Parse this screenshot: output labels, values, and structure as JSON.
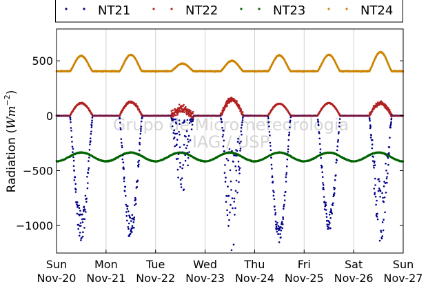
{
  "chart_data": {
    "type": "scatter",
    "ylabel": "Radiation (",
    "ylabel_unit": "Wm",
    "ylabel_exp": "−2",
    "ylabel_close": ")",
    "ylim": [
      -1250,
      790
    ],
    "xlim": [
      0,
      7
    ],
    "yticks": [
      500,
      0,
      -500,
      -1000
    ],
    "ytick_labels": [
      "500",
      "0",
      "−500",
      "−1000"
    ],
    "xticks": [
      {
        "day": "Sun",
        "date": "Nov-20"
      },
      {
        "day": "Mon",
        "date": "Nov-21"
      },
      {
        "day": "Tue",
        "date": "Nov-22"
      },
      {
        "day": "Wed",
        "date": "Nov-23"
      },
      {
        "day": "Thu",
        "date": "Nov-24"
      },
      {
        "day": "Fri",
        "date": "Nov-25"
      },
      {
        "day": "Sat",
        "date": "Nov-26"
      },
      {
        "day": "Sun",
        "date": "Nov-27"
      }
    ],
    "grid": "vertical",
    "legend_position": "top",
    "watermark": [
      "Grupo de Micrometeorologia",
      "IAG / USP"
    ],
    "series": [
      {
        "name": "NT21",
        "color": "#00008b",
        "night_level": 0,
        "daily_minimum": [
          -1150,
          -1150,
          -700,
          -1230,
          -1170,
          -1050,
          -1150
        ],
        "daily_peak_hour": [
          12,
          12,
          13,
          13,
          12,
          12,
          13
        ],
        "daily_cloudiness": [
          0.25,
          0.2,
          0.95,
          0.75,
          0.15,
          0.15,
          0.5
        ]
      },
      {
        "name": "NT22",
        "color": "#b22222",
        "night_level": 0,
        "daily_peak": [
          115,
          125,
          60,
          145,
          110,
          115,
          115
        ],
        "daily_cloudiness": [
          0.15,
          0.25,
          0.9,
          0.55,
          0.1,
          0.1,
          0.45
        ]
      },
      {
        "name": "NT23",
        "color": "#006400",
        "mean_level": -375,
        "wave_amplitude": 40
      },
      {
        "name": "NT24",
        "color": "#cc8400",
        "night_level": 405,
        "daily_peak": [
          545,
          555,
          475,
          500,
          550,
          555,
          580
        ]
      }
    ]
  }
}
